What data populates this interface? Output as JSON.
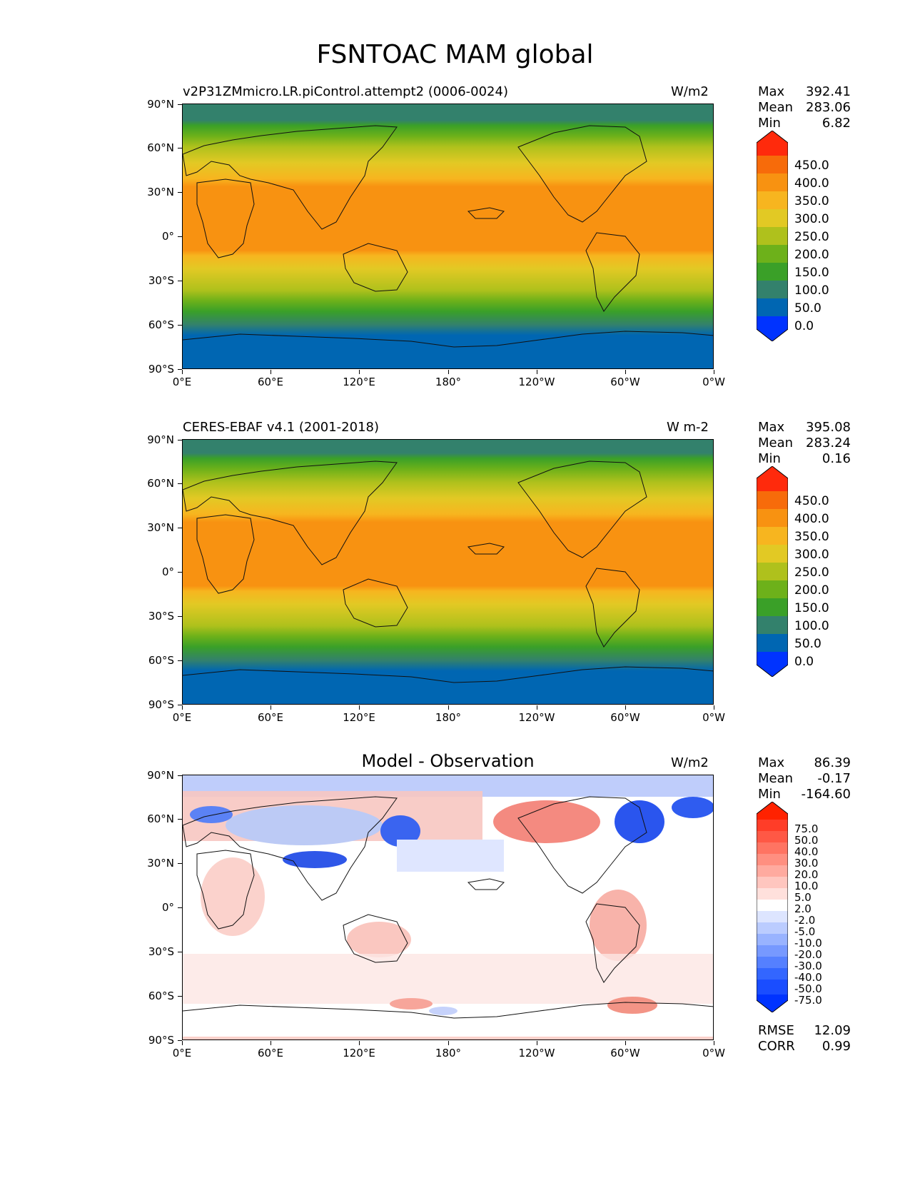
{
  "figure_title": "FSNTOAC MAM global",
  "lat_ticks": [
    "90°N",
    "60°N",
    "30°N",
    "0°",
    "30°S",
    "60°S",
    "90°S"
  ],
  "lon_ticks": [
    "0°E",
    "60°E",
    "120°E",
    "180°",
    "120°W",
    "60°W",
    "0°W"
  ],
  "panels": [
    {
      "left_title": "v2P31ZMmicro.LR.piControl.attempt2 (0006-0024)",
      "units": "W/m2",
      "stats": {
        "max_label": "Max",
        "max": "392.41",
        "mean_label": "Mean",
        "mean": "283.06",
        "min_label": "Min",
        "min": "6.82"
      },
      "colorbar_labels": [
        "450.0",
        "400.0",
        "350.0",
        "300.0",
        "250.0",
        "200.0",
        "150.0",
        "100.0",
        "50.0",
        "0.0"
      ]
    },
    {
      "left_title": "CERES-EBAF v4.1 (2001-2018)",
      "units": "W m-2",
      "stats": {
        "max_label": "Max",
        "max": "395.08",
        "mean_label": "Mean",
        "mean": "283.24",
        "min_label": "Min",
        "min": "0.16"
      },
      "colorbar_labels": [
        "450.0",
        "400.0",
        "350.0",
        "300.0",
        "250.0",
        "200.0",
        "150.0",
        "100.0",
        "50.0",
        "0.0"
      ]
    },
    {
      "center_title": "Model - Observation",
      "units": "W/m2",
      "stats": {
        "max_label": "Max",
        "max": "86.39",
        "mean_label": "Mean",
        "mean": "-0.17",
        "min_label": "Min",
        "min": "-164.60"
      },
      "colorbar_labels": [
        "75.0",
        "50.0",
        "40.0",
        "30.0",
        "20.0",
        "10.0",
        "5.0",
        "2.0",
        "-2.0",
        "-5.0",
        "-10.0",
        "-20.0",
        "-30.0",
        "-40.0",
        "-50.0",
        "-75.0"
      ],
      "metrics": {
        "rmse_label": "RMSE",
        "rmse": "12.09",
        "corr_label": "CORR",
        "corr": "0.99"
      }
    }
  ],
  "colors": {
    "abs_scale": [
      "#0033ff",
      "#0066b2",
      "#33816c",
      "#3aa028",
      "#6db11a",
      "#afc11c",
      "#e2c924",
      "#f7b51f",
      "#f89211",
      "#f76b0a",
      "#ff2a0c"
    ],
    "diff_scale": [
      "#0033ff",
      "#1a4dff",
      "#3366ff",
      "#5580ff",
      "#7799ff",
      "#99b3ff",
      "#bbccff",
      "#dde5ff",
      "#ffffff",
      "#ffe0dc",
      "#ffc6bf",
      "#ffaa9f",
      "#ff8f80",
      "#ff7462",
      "#ff5845",
      "#ff3d28",
      "#ff2200"
    ]
  }
}
